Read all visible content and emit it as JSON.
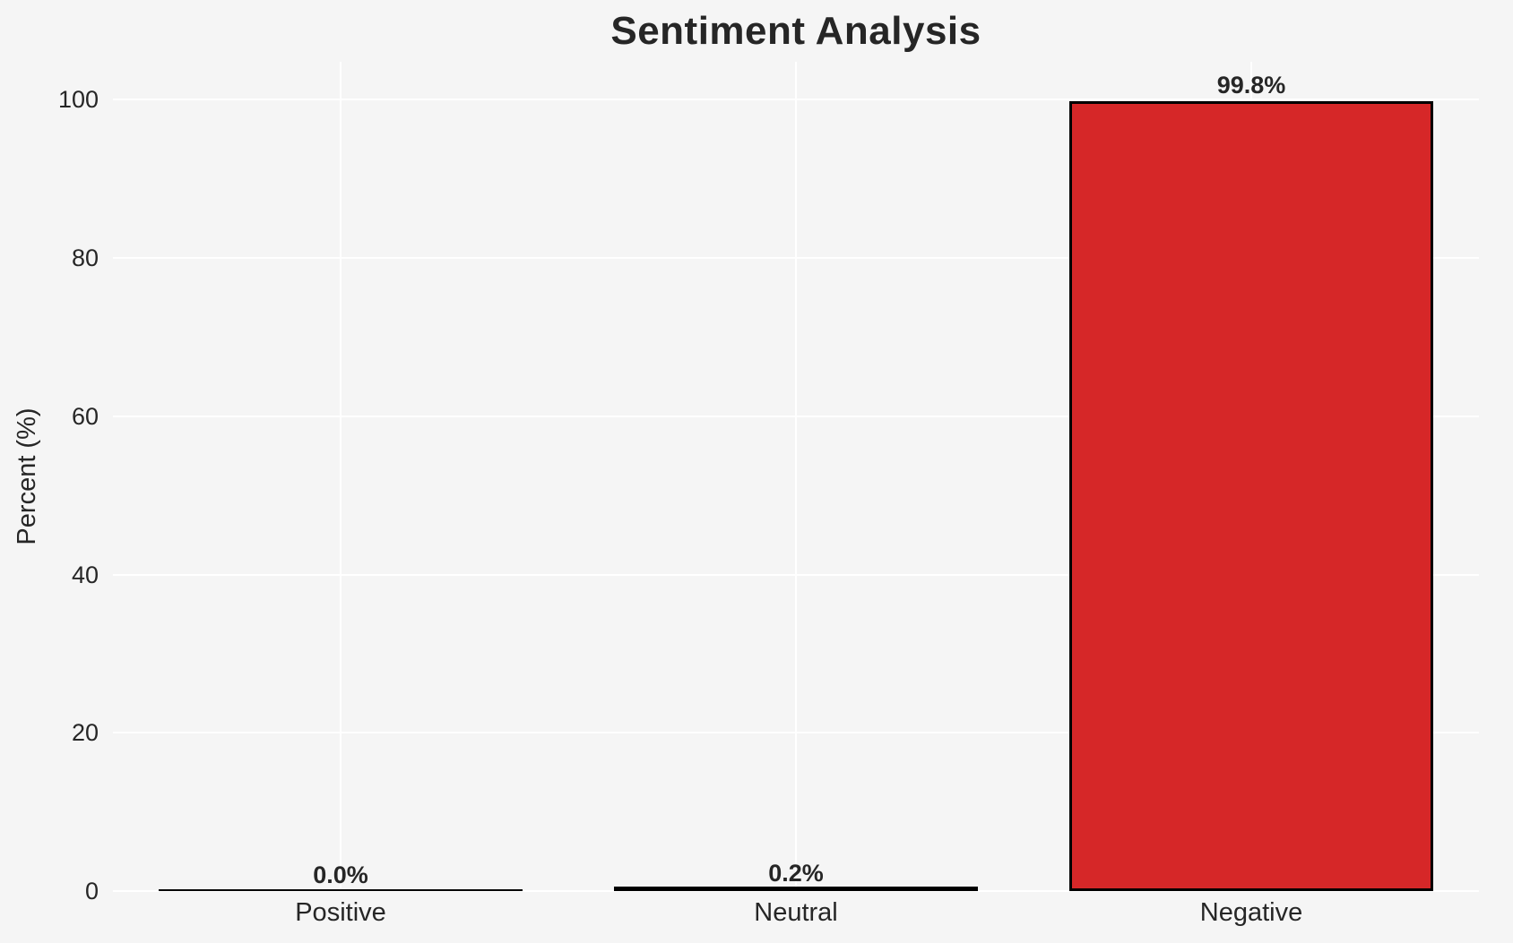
{
  "chart_data": {
    "type": "bar",
    "title": "Sentiment Analysis",
    "ylabel": "Percent (%)",
    "xlabel": "",
    "categories": [
      "Positive",
      "Neutral",
      "Negative"
    ],
    "values": [
      0.0,
      0.2,
      99.8
    ],
    "value_labels": [
      "0.0%",
      "0.2%",
      "99.8%"
    ],
    "yticks": [
      0,
      20,
      40,
      60,
      80,
      100
    ],
    "ytick_labels": [
      "0",
      "20",
      "40",
      "60",
      "80",
      "100"
    ],
    "ylim": [
      0,
      100
    ],
    "grid": true,
    "legend": false,
    "colors": {
      "bar_fill": "#d62728",
      "bar_edge": "#000000",
      "background": "#f5f5f5",
      "gridline": "#ffffff",
      "text": "#262626"
    }
  }
}
